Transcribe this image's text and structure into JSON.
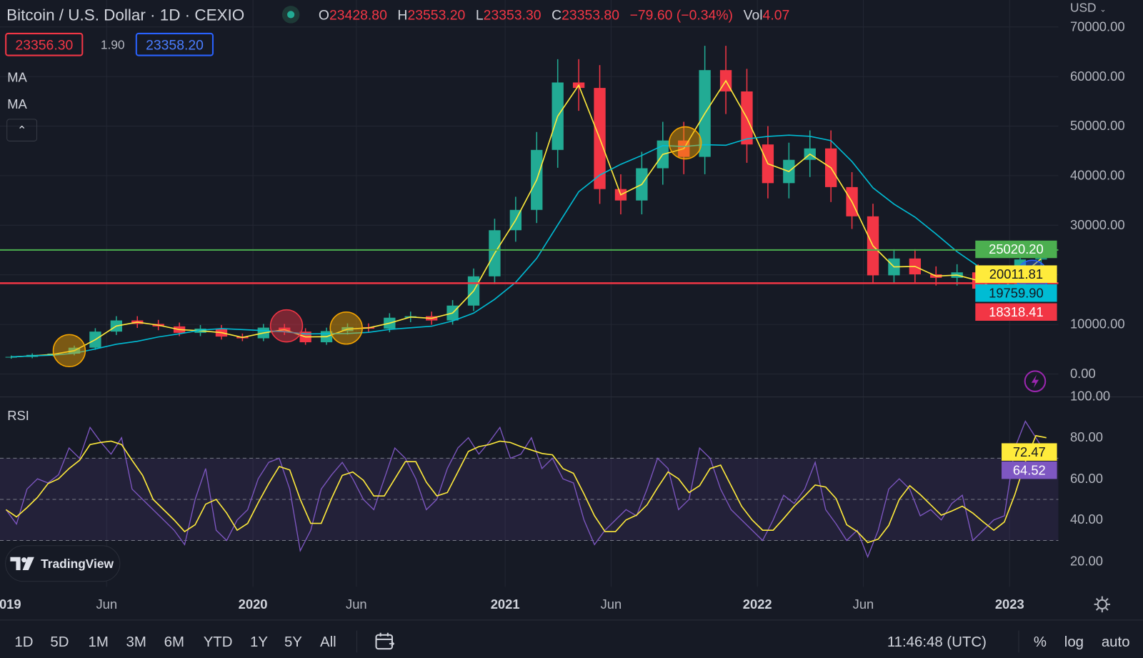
{
  "header": {
    "title": "Bitcoin / U.S. Dollar · 1D · CEXIO",
    "market_status_color": "#22ab94",
    "ohlc": {
      "o_label": "O",
      "o": "23428.80",
      "h_label": "H",
      "h": "23553.20",
      "l_label": "L",
      "l": "23353.30",
      "c_label": "C",
      "c": "23353.80",
      "change": "−79.60 (−0.34%)",
      "vol_label": "Vol",
      "vol": "4.07"
    }
  },
  "quote": {
    "bid": "23356.30",
    "spread": "1.90",
    "ask": "23358.20"
  },
  "indicators": {
    "ma1": "MA",
    "ma2": "MA",
    "collapse_icon": "chevron-up-icon",
    "rsi": "RSI"
  },
  "currency": "USD",
  "price_axis": [
    "70000.00",
    "60000.00",
    "50000.00",
    "40000.00",
    "30000.00",
    "10000.00",
    "0.00"
  ],
  "price_badges": [
    {
      "text": "25020.20",
      "bg": "#4caf50",
      "fg": "#ffffff"
    },
    {
      "text": "20011.81",
      "bg": "#ffeb3b",
      "fg": "#131722"
    },
    {
      "text": "19759.90",
      "bg": "#00bcd4",
      "fg": "#131722"
    },
    {
      "text": "18318.41",
      "bg": "#f23645",
      "fg": "#ffffff"
    }
  ],
  "rsi_axis": [
    "100.00",
    "80.00",
    "60.00",
    "40.00",
    "20.00"
  ],
  "rsi_badges": [
    {
      "text": "72.47",
      "bg": "#ffeb3b",
      "fg": "#131722"
    },
    {
      "text": "64.52",
      "bg": "#7e57c2",
      "fg": "#ffffff"
    }
  ],
  "time_axis": [
    {
      "t": "019",
      "x": 2019.0,
      "year": true
    },
    {
      "t": "Jun",
      "x": 2019.42
    },
    {
      "t": "2020",
      "x": 2020.0,
      "year": true
    },
    {
      "t": "Jun",
      "x": 2020.41
    },
    {
      "t": "2021",
      "x": 2021.0,
      "year": true
    },
    {
      "t": "Jun",
      "x": 2021.42
    },
    {
      "t": "2022",
      "x": 2022.0,
      "year": true
    },
    {
      "t": "Jun",
      "x": 2022.42
    },
    {
      "t": "2023",
      "x": 2023.0,
      "year": true
    }
  ],
  "toolbar": {
    "ranges": [
      "1D",
      "5D",
      "1M",
      "3M",
      "6M",
      "YTD",
      "1Y",
      "5Y",
      "All"
    ],
    "time": "11:46:48 (UTC)",
    "percent": "%",
    "log": "log",
    "auto": "auto"
  },
  "brand": "TradingView",
  "colors": {
    "up": "#22ab94",
    "down": "#f23645",
    "ma_fast": "#ffeb3b",
    "ma_slow": "#00bcd4",
    "rsi": "#7e57c2",
    "support": "#f23645",
    "resistance": "#4caf50"
  },
  "chart_data": {
    "type": "candlestick",
    "ylim": [
      0,
      70000
    ],
    "xlim": [
      "2019-01",
      "2023-03"
    ],
    "grid": true,
    "monthly_close": {
      "start": "2019-01",
      "values": [
        3450,
        3850,
        4100,
        5300,
        8550,
        10800,
        10100,
        9600,
        8300,
        9150,
        7550,
        7200,
        9350,
        8550,
        6400,
        8650,
        9450,
        9150,
        11350,
        11650,
        10800,
        13800,
        19700,
        29000,
        33100,
        45200,
        58800,
        57700,
        37300,
        35000,
        41500,
        47100,
        43800,
        61300,
        57000,
        46300,
        38500,
        43200,
        45500,
        37700,
        31800,
        19900,
        23300,
        20100,
        19400,
        20500,
        17200,
        16550,
        23100,
        23350
      ]
    },
    "horizontal_levels": [
      25020.2,
      18318.41
    ],
    "ma_values_last": {
      "fast": 20011.81,
      "slow": 19759.9
    },
    "rsi": {
      "ylim": [
        0,
        100
      ],
      "bands": [
        30,
        50,
        70
      ],
      "start": "2019-01",
      "per": "half-month",
      "values": [
        45,
        38,
        55,
        60,
        58,
        62,
        75,
        70,
        85,
        78,
        72,
        80,
        55,
        50,
        45,
        40,
        35,
        28,
        50,
        65,
        35,
        30,
        40,
        45,
        60,
        68,
        70,
        55,
        25,
        35,
        55,
        62,
        68,
        60,
        50,
        45,
        60,
        75,
        70,
        60,
        45,
        50,
        65,
        75,
        80,
        72,
        78,
        85,
        70,
        72,
        80,
        65,
        70,
        60,
        58,
        40,
        28,
        35,
        40,
        45,
        42,
        55,
        70,
        65,
        45,
        50,
        75,
        70,
        55,
        45,
        40,
        35,
        30,
        40,
        52,
        48,
        55,
        68,
        45,
        38,
        30,
        35,
        22,
        35,
        55,
        60,
        55,
        42,
        45,
        40,
        48,
        52,
        30,
        35,
        40,
        42,
        75,
        88,
        80,
        72
      ],
      "last": {
        "rsi": 64.52,
        "rsi_ma": 72.47
      }
    }
  }
}
